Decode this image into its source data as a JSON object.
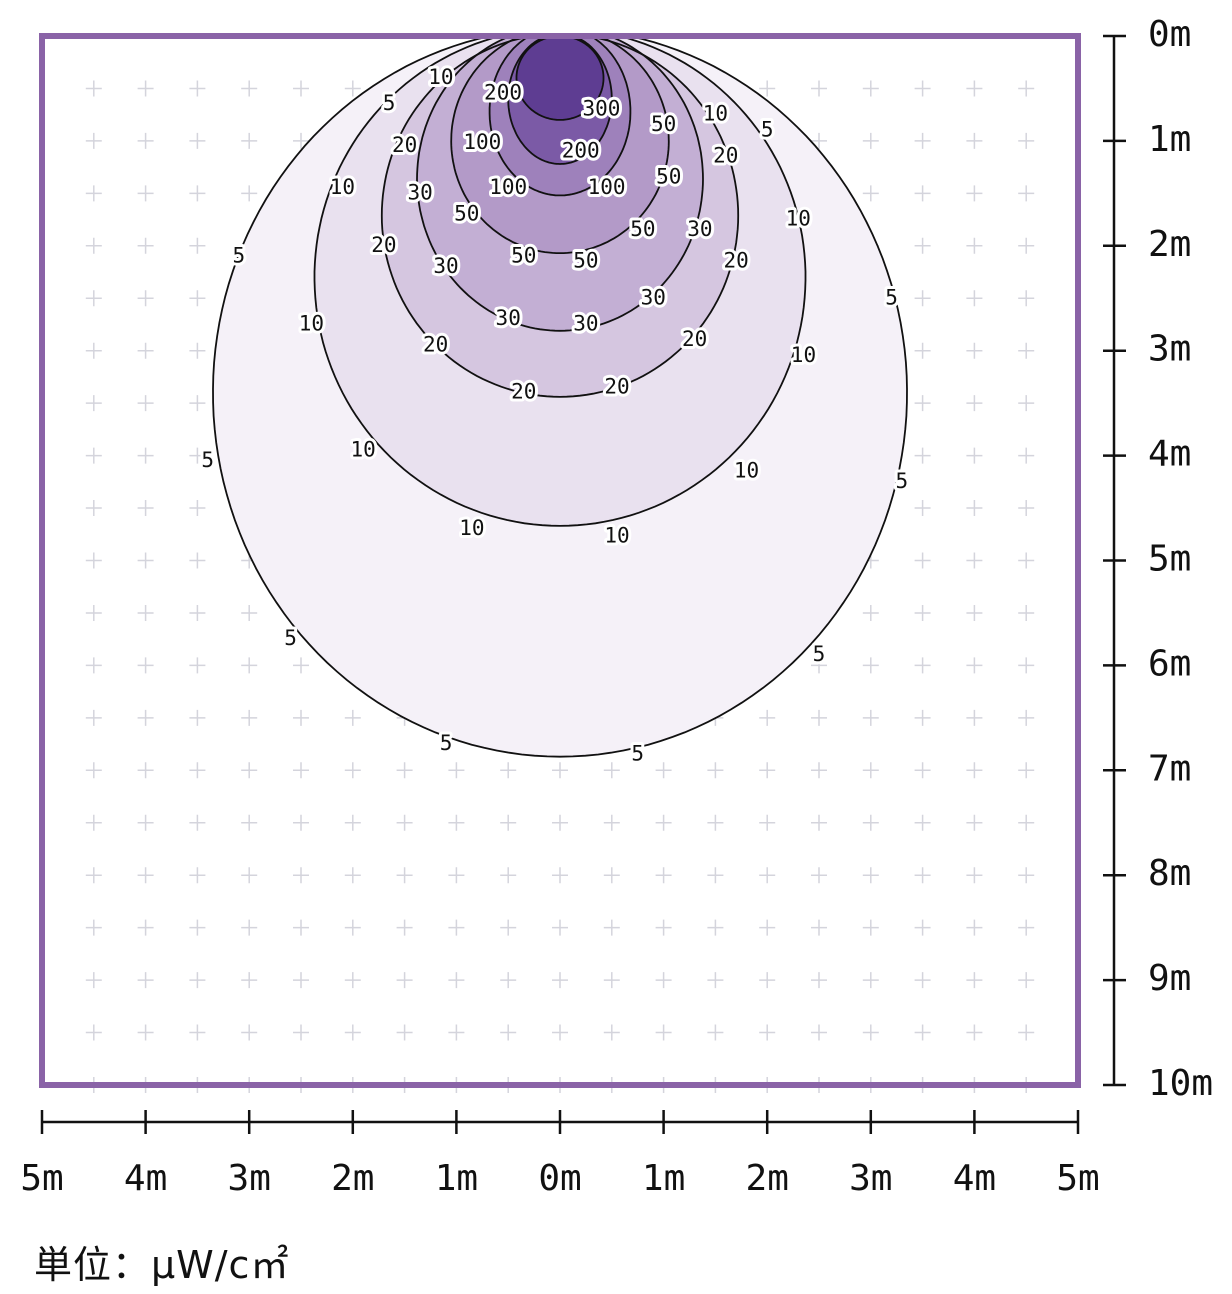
{
  "chart_data": {
    "type": "heatmap",
    "subtype": "isoline contour (light distribution)",
    "x_ticks": [
      "5m",
      "4m",
      "3m",
      "2m",
      "1m",
      "0m",
      "1m",
      "2m",
      "3m",
      "4m",
      "5m"
    ],
    "y_ticks": [
      "0m",
      "1m",
      "2m",
      "3m",
      "4m",
      "5m",
      "6m",
      "7m",
      "8m",
      "9m",
      "10m"
    ],
    "xlim": [
      -5,
      5
    ],
    "ylim": [
      0,
      10
    ],
    "grid": true,
    "unit_label": "単位：μW/c㎡",
    "colors": {
      "frame": "#8a63a7",
      "axis": "#111111",
      "grid_cross": "#d4d4dc",
      "contour_line": "#111111",
      "fills": {
        "5": "#f5f1f8",
        "10": "#e9e1ef",
        "20": "#d5c6e0",
        "30": "#c3afd4",
        "50": "#b39ac8",
        "100": "#9e81bb",
        "200": "#7b5aa6",
        "300": "#5e3d92"
      }
    },
    "contours": [
      {
        "level": 5,
        "half_width": 3.35,
        "center_y": 3.4,
        "ry": 3.47,
        "labels": [
          [
            -1.65,
            0.65
          ],
          [
            2.0,
            0.9
          ],
          [
            -3.1,
            2.1
          ],
          [
            3.2,
            2.5
          ],
          [
            -3.4,
            4.05
          ],
          [
            3.3,
            4.25
          ],
          [
            -2.6,
            5.75
          ],
          [
            2.5,
            5.9
          ],
          [
            -1.1,
            6.75
          ],
          [
            0.75,
            6.85
          ]
        ]
      },
      {
        "level": 10,
        "half_width": 2.37,
        "center_y": 2.3,
        "ry": 2.37,
        "labels": [
          [
            -1.15,
            0.4
          ],
          [
            1.5,
            0.75
          ],
          [
            -2.1,
            1.45
          ],
          [
            2.3,
            1.75
          ],
          [
            -2.4,
            2.75
          ],
          [
            2.35,
            3.05
          ],
          [
            -1.9,
            3.95
          ],
          [
            1.8,
            4.15
          ],
          [
            -0.85,
            4.7
          ],
          [
            0.55,
            4.77
          ]
        ]
      },
      {
        "level": 20,
        "half_width": 1.72,
        "center_y": 1.71,
        "ry": 1.73,
        "labels": [
          [
            -1.5,
            1.05
          ],
          [
            1.6,
            1.15
          ],
          [
            -1.7,
            2.0
          ],
          [
            1.7,
            2.15
          ],
          [
            -1.2,
            2.95
          ],
          [
            1.3,
            2.9
          ],
          [
            -0.35,
            3.4
          ],
          [
            0.55,
            3.35
          ]
        ]
      },
      {
        "level": 30,
        "half_width": 1.38,
        "center_y": 1.36,
        "ry": 1.45,
        "labels": [
          [
            -1.35,
            1.5
          ],
          [
            1.35,
            1.85
          ],
          [
            -1.1,
            2.2
          ],
          [
            0.9,
            2.5
          ],
          [
            -0.5,
            2.7
          ],
          [
            0.25,
            2.75
          ]
        ]
      },
      {
        "level": 50,
        "half_width": 1.05,
        "center_y": 1.0,
        "ry": 1.07,
        "labels": [
          [
            1.0,
            0.85
          ],
          [
            1.05,
            1.35
          ],
          [
            -0.9,
            1.7
          ],
          [
            0.8,
            1.85
          ],
          [
            -0.35,
            2.1
          ],
          [
            0.25,
            2.15
          ]
        ]
      },
      {
        "level": 100,
        "half_width": 0.68,
        "center_y": 0.72,
        "ry": 0.8,
        "labels": [
          [
            -0.75,
            1.02
          ],
          [
            -0.5,
            1.45
          ],
          [
            0.45,
            1.45
          ]
        ]
      },
      {
        "level": 200,
        "half_width": 0.5,
        "center_y": 0.6,
        "ry": 0.62,
        "labels": [
          [
            -0.55,
            0.55
          ],
          [
            0.2,
            1.1
          ]
        ]
      },
      {
        "level": 300,
        "half_width": 0.42,
        "center_y": 0.4,
        "ry": 0.4,
        "labels": [
          [
            0.4,
            0.7
          ]
        ]
      }
    ]
  }
}
